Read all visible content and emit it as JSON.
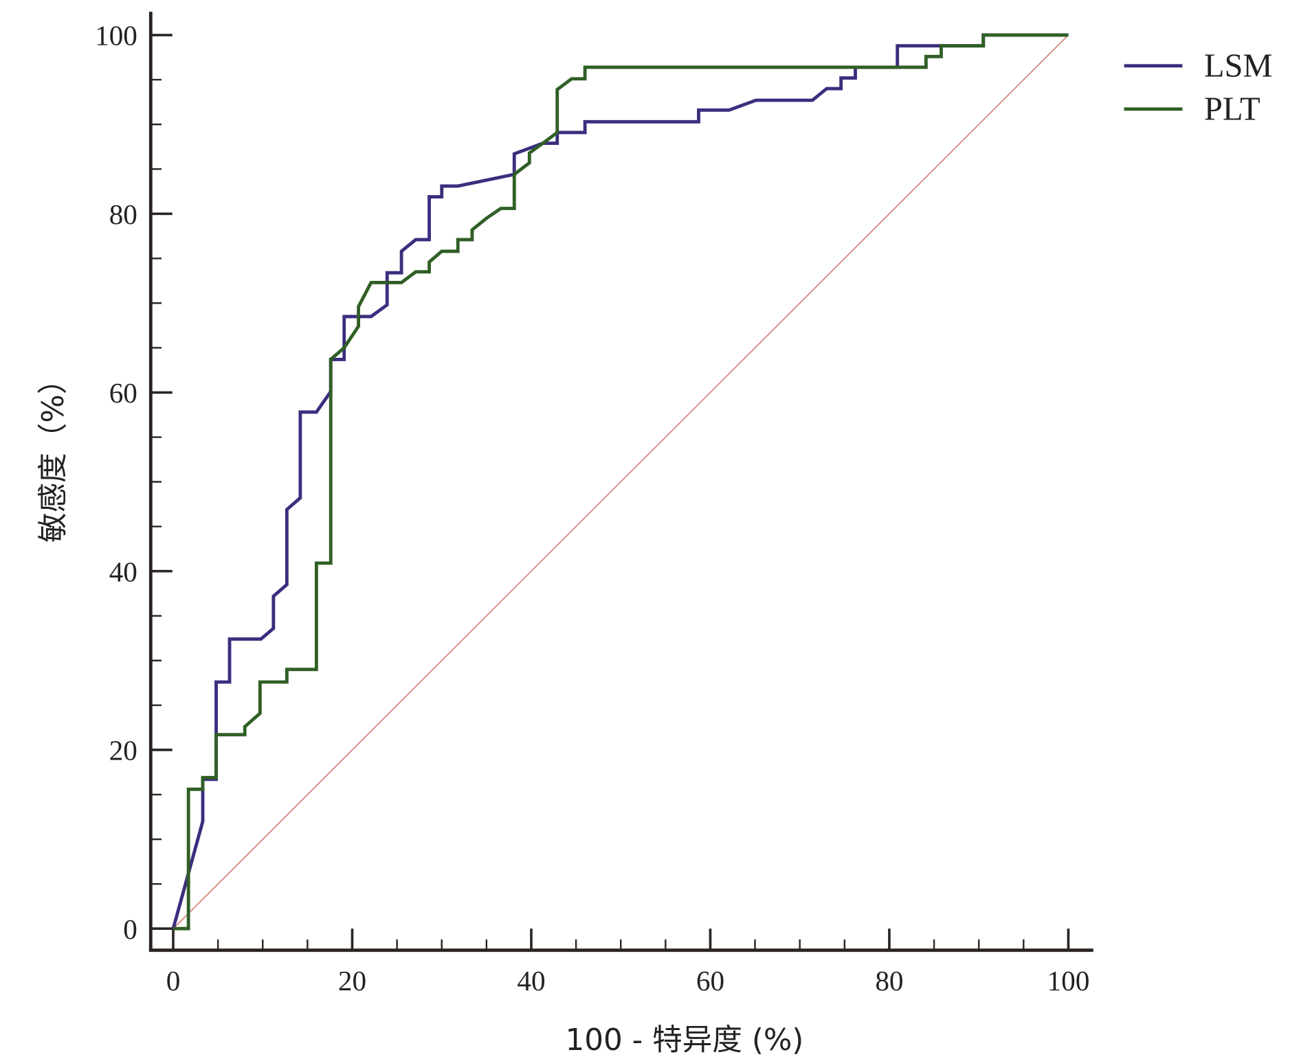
{
  "chart_data": {
    "type": "line",
    "title": "",
    "xlabel": "100 - 特异度 (%)",
    "ylabel": "敏感度（%）",
    "xlim": [
      0,
      100
    ],
    "ylim": [
      0,
      100
    ],
    "xticks": [
      0,
      20,
      40,
      60,
      80,
      100
    ],
    "yticks": [
      0,
      20,
      40,
      60,
      80,
      100
    ],
    "minor_tick_step": 5,
    "grid": false,
    "legend_position": "top-right",
    "reference_line": {
      "name": "diagonal",
      "points": [
        [
          0,
          0
        ],
        [
          100,
          100
        ]
      ],
      "color": "#d07a70"
    },
    "series": [
      {
        "name": "LSM",
        "color": "#3b2e7e",
        "points": [
          [
            0,
            0
          ],
          [
            3.3,
            12.0
          ],
          [
            3.3,
            16.7
          ],
          [
            4.8,
            16.7
          ],
          [
            4.8,
            27.6
          ],
          [
            6.3,
            27.6
          ],
          [
            6.3,
            32.4
          ],
          [
            9.8,
            32.4
          ],
          [
            11.2,
            33.6
          ],
          [
            11.2,
            37.2
          ],
          [
            12.7,
            38.5
          ],
          [
            12.7,
            46.9
          ],
          [
            14.2,
            48.2
          ],
          [
            14.2,
            57.8
          ],
          [
            16.0,
            57.8
          ],
          [
            17.6,
            60.1
          ],
          [
            17.6,
            63.7
          ],
          [
            19.1,
            63.7
          ],
          [
            19.1,
            68.5
          ],
          [
            22.1,
            68.5
          ],
          [
            23.9,
            69.8
          ],
          [
            23.9,
            73.4
          ],
          [
            25.5,
            73.4
          ],
          [
            25.5,
            75.8
          ],
          [
            27.1,
            77.1
          ],
          [
            28.6,
            77.1
          ],
          [
            28.6,
            81.9
          ],
          [
            30.0,
            81.9
          ],
          [
            30.0,
            83.1
          ],
          [
            31.8,
            83.1
          ],
          [
            38.1,
            84.4
          ],
          [
            38.1,
            86.7
          ],
          [
            41.3,
            87.9
          ],
          [
            42.9,
            87.9
          ],
          [
            42.9,
            89.1
          ],
          [
            46.0,
            89.1
          ],
          [
            46.0,
            90.3
          ],
          [
            58.7,
            90.3
          ],
          [
            58.7,
            91.6
          ],
          [
            62.1,
            91.6
          ],
          [
            65.1,
            92.7
          ],
          [
            71.4,
            92.7
          ],
          [
            73.0,
            94.0
          ],
          [
            74.6,
            94.0
          ],
          [
            74.6,
            95.2
          ],
          [
            76.2,
            95.2
          ],
          [
            76.2,
            96.4
          ],
          [
            80.9,
            96.4
          ],
          [
            80.9,
            98.8
          ],
          [
            90.5,
            98.8
          ],
          [
            90.5,
            100
          ],
          [
            100,
            100
          ]
        ]
      },
      {
        "name": "PLT",
        "color": "#2f5f25",
        "points": [
          [
            0,
            0
          ],
          [
            1.7,
            0
          ],
          [
            1.7,
            15.6
          ],
          [
            3.3,
            15.6
          ],
          [
            3.3,
            16.9
          ],
          [
            4.8,
            16.9
          ],
          [
            4.8,
            21.7
          ],
          [
            8.0,
            21.7
          ],
          [
            8.0,
            22.6
          ],
          [
            9.7,
            24.1
          ],
          [
            9.7,
            27.6
          ],
          [
            12.7,
            27.6
          ],
          [
            12.7,
            29.0
          ],
          [
            16.0,
            29.0
          ],
          [
            16.0,
            40.9
          ],
          [
            17.6,
            40.9
          ],
          [
            17.6,
            63.7
          ],
          [
            19.1,
            65.0
          ],
          [
            20.7,
            67.4
          ],
          [
            20.7,
            69.6
          ],
          [
            22.1,
            72.3
          ],
          [
            25.5,
            72.3
          ],
          [
            27.1,
            73.5
          ],
          [
            28.6,
            73.5
          ],
          [
            28.6,
            74.6
          ],
          [
            30.0,
            75.8
          ],
          [
            31.8,
            75.8
          ],
          [
            31.8,
            77.1
          ],
          [
            33.4,
            77.1
          ],
          [
            33.4,
            78.2
          ],
          [
            35.0,
            79.5
          ],
          [
            36.6,
            80.6
          ],
          [
            38.1,
            80.6
          ],
          [
            38.1,
            84.4
          ],
          [
            39.8,
            85.7
          ],
          [
            39.8,
            86.8
          ],
          [
            41.3,
            87.9
          ],
          [
            42.9,
            89.1
          ],
          [
            42.9,
            93.9
          ],
          [
            44.5,
            95.1
          ],
          [
            46.0,
            95.1
          ],
          [
            46.0,
            96.4
          ],
          [
            84.1,
            96.4
          ],
          [
            84.1,
            97.6
          ],
          [
            85.8,
            97.6
          ],
          [
            85.8,
            98.8
          ],
          [
            90.5,
            98.8
          ],
          [
            90.5,
            100
          ],
          [
            100,
            100
          ]
        ]
      }
    ]
  }
}
